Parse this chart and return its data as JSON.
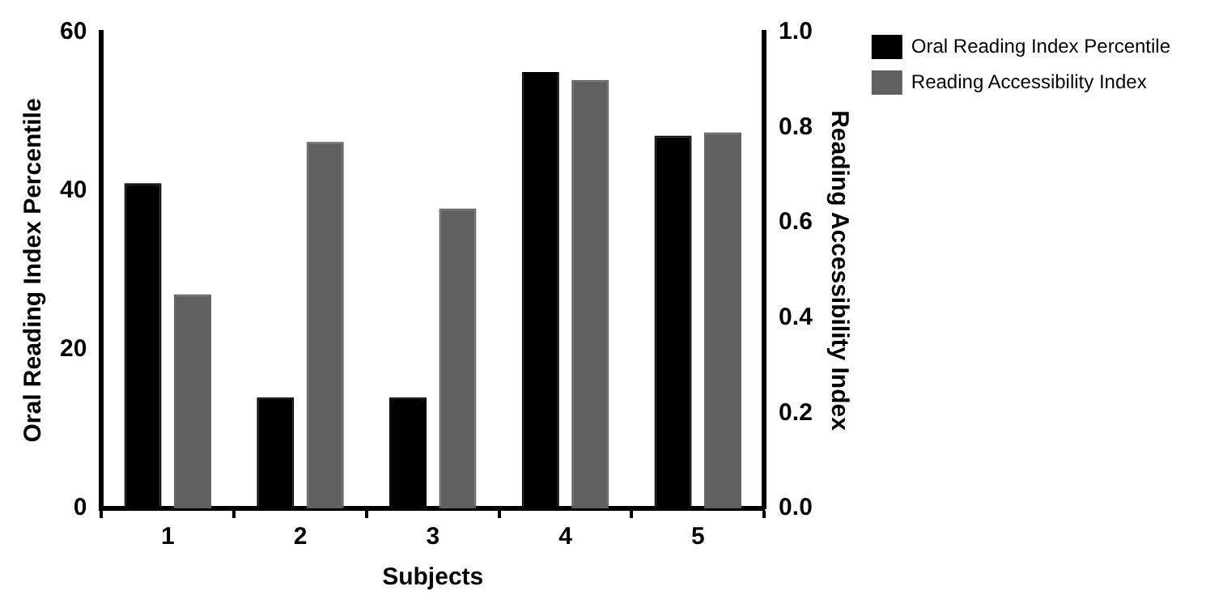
{
  "chart_data": {
    "type": "bar",
    "xlabel": "Subjects",
    "ylabel": "Oral Reading Index Percentile",
    "y2label": "Reading Accessibility Index",
    "categories": [
      "1",
      "2",
      "3",
      "4",
      "5"
    ],
    "series": [
      {
        "name": "Oral Reading Index Percentile",
        "color": "#000000",
        "values": [
          41,
          14,
          14,
          55,
          47
        ]
      },
      {
        "name": "Reading Accessibility Index",
        "color": "#606060",
        "axis": "y2",
        "values": [
          0.45,
          0.77,
          0.63,
          0.9,
          0.79
        ]
      }
    ],
    "ylim": [
      0,
      60
    ],
    "yticks": [
      0,
      20,
      40,
      60
    ],
    "y2lim": [
      0,
      1
    ],
    "y2ticks": [
      {
        "value": 0,
        "label": "0.0"
      },
      {
        "value": 0.2,
        "label": "0.2"
      },
      {
        "value": 0.4,
        "label": "0.4"
      },
      {
        "value": 0.6,
        "label": "0.6"
      },
      {
        "value": 0.8,
        "label": "0.8"
      },
      {
        "value": 1,
        "label": "1.0"
      }
    ],
    "grid": false,
    "legend": "top right"
  }
}
